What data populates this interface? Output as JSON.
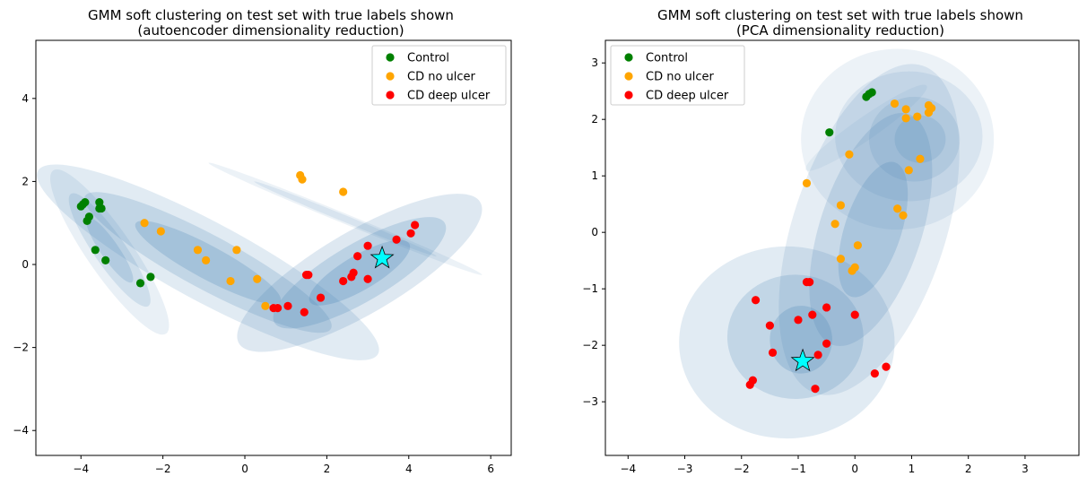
{
  "colors": {
    "control": "#008000",
    "cd_no_ulcer": "#FFA500",
    "cd_deep_ulcer": "#FF0000",
    "star": "#00FFFF",
    "ellipse": "#4682B4"
  },
  "chart_data": [
    {
      "type": "scatter",
      "title": "GMM soft clustering on test set with true labels shown",
      "subtitle": "(autoencoder dimensionality reduction)",
      "xlim": [
        -5.1,
        6.5
      ],
      "ylim": [
        -4.6,
        5.4
      ],
      "xticks": [
        -4,
        -2,
        0,
        2,
        4,
        6
      ],
      "yticks": [
        -4,
        -2,
        0,
        2,
        4
      ],
      "legend": {
        "position": "top-right",
        "entries": [
          "Control",
          "CD no ulcer",
          "CD deep ulcer"
        ]
      },
      "series": [
        {
          "name": "Control",
          "color_key": "control",
          "points": [
            [
              -3.95,
              1.45
            ],
            [
              -4.0,
              1.4
            ],
            [
              -3.9,
              1.5
            ],
            [
              -3.55,
              1.5
            ],
            [
              -3.5,
              1.35
            ],
            [
              -3.55,
              1.35
            ],
            [
              -3.8,
              1.15
            ],
            [
              -3.85,
              1.05
            ],
            [
              -3.65,
              0.35
            ],
            [
              -3.4,
              0.1
            ],
            [
              -2.55,
              -0.45
            ],
            [
              -2.3,
              -0.3
            ]
          ]
        },
        {
          "name": "CD no ulcer",
          "color_key": "cd_no_ulcer",
          "points": [
            [
              -2.45,
              1.0
            ],
            [
              -2.05,
              0.8
            ],
            [
              -1.15,
              0.35
            ],
            [
              -0.95,
              0.1
            ],
            [
              -0.2,
              0.35
            ],
            [
              -0.35,
              -0.4
            ],
            [
              0.3,
              -0.35
            ],
            [
              0.5,
              -1.0
            ],
            [
              1.35,
              2.15
            ],
            [
              1.4,
              2.05
            ],
            [
              2.4,
              1.75
            ]
          ]
        },
        {
          "name": "CD deep ulcer",
          "color_key": "cd_deep_ulcer",
          "points": [
            [
              0.7,
              -1.05
            ],
            [
              0.8,
              -1.05
            ],
            [
              1.05,
              -1.0
            ],
            [
              1.45,
              -1.15
            ],
            [
              1.5,
              -0.25
            ],
            [
              1.55,
              -0.25
            ],
            [
              1.85,
              -0.8
            ],
            [
              2.4,
              -0.4
            ],
            [
              2.6,
              -0.3
            ],
            [
              2.65,
              -0.2
            ],
            [
              2.75,
              0.2
            ],
            [
              3.0,
              0.45
            ],
            [
              3.0,
              -0.35
            ],
            [
              3.7,
              0.6
            ],
            [
              4.05,
              0.75
            ],
            [
              4.15,
              0.95
            ]
          ]
        }
      ],
      "star": [
        3.35,
        0.15
      ],
      "ellipses": [
        {
          "cx": -3.3,
          "cy": 0.3,
          "rx": 2.4,
          "ry": 0.55,
          "angle": -55,
          "opacity": 0.12
        },
        {
          "cx": -3.3,
          "cy": 0.35,
          "rx": 1.65,
          "ry": 0.38,
          "angle": -55,
          "opacity": 0.16
        },
        {
          "cx": -3.3,
          "cy": 0.35,
          "rx": 0.95,
          "ry": 0.22,
          "angle": -55,
          "opacity": 0.2
        },
        {
          "cx": -0.9,
          "cy": 0.05,
          "rx": 4.7,
          "ry": 0.95,
          "angle": -28,
          "opacity": 0.16
        },
        {
          "cx": -0.9,
          "cy": 0.05,
          "rx": 3.4,
          "ry": 0.65,
          "angle": -28,
          "opacity": 0.2
        },
        {
          "cx": -0.9,
          "cy": 0.05,
          "rx": 2.0,
          "ry": 0.4,
          "angle": -28,
          "opacity": 0.24
        },
        {
          "cx": 2.8,
          "cy": -0.2,
          "rx": 3.4,
          "ry": 1.0,
          "angle": 30,
          "opacity": 0.18
        },
        {
          "cx": 2.8,
          "cy": -0.2,
          "rx": 2.4,
          "ry": 0.7,
          "angle": 30,
          "opacity": 0.22
        },
        {
          "cx": 2.8,
          "cy": -0.2,
          "rx": 1.4,
          "ry": 0.42,
          "angle": 30,
          "opacity": 0.26
        },
        {
          "cx": 2.45,
          "cy": 1.1,
          "rx": 3.6,
          "ry": 0.12,
          "angle": -22,
          "opacity": 0.1
        },
        {
          "cx": 2.45,
          "cy": 1.1,
          "rx": 2.4,
          "ry": 0.08,
          "angle": -22,
          "opacity": 0.12
        }
      ]
    },
    {
      "type": "scatter",
      "title": "GMM soft clustering on test set with true labels shown",
      "subtitle": "(PCA dimensionality reduction)",
      "xlim": [
        -4.4,
        3.95
      ],
      "ylim": [
        -3.95,
        3.4
      ],
      "xticks": [
        -4,
        -3,
        -2,
        -1,
        0,
        1,
        2,
        3
      ],
      "yticks": [
        -3,
        -2,
        -1,
        0,
        1,
        2,
        3
      ],
      "legend": {
        "position": "top-left",
        "entries": [
          "Control",
          "CD no ulcer",
          "CD deep ulcer"
        ]
      },
      "series": [
        {
          "name": "Control",
          "color_key": "control",
          "points": [
            [
              0.2,
              2.4
            ],
            [
              0.25,
              2.45
            ],
            [
              0.3,
              2.48
            ],
            [
              -0.45,
              1.77
            ]
          ]
        },
        {
          "name": "CD no ulcer",
          "color_key": "cd_no_ulcer",
          "points": [
            [
              0.7,
              2.28
            ],
            [
              0.9,
              2.18
            ],
            [
              0.9,
              2.02
            ],
            [
              1.1,
              2.05
            ],
            [
              1.3,
              2.25
            ],
            [
              1.35,
              2.2
            ],
            [
              1.3,
              2.12
            ],
            [
              0.95,
              1.1
            ],
            [
              1.15,
              1.3
            ],
            [
              -0.1,
              1.38
            ],
            [
              -0.85,
              0.87
            ],
            [
              -0.25,
              0.48
            ],
            [
              -0.35,
              0.15
            ],
            [
              0.75,
              0.42
            ],
            [
              0.85,
              0.3
            ],
            [
              0.05,
              -0.23
            ],
            [
              -0.25,
              -0.47
            ],
            [
              0.0,
              -0.62
            ],
            [
              -0.05,
              -0.68
            ]
          ]
        },
        {
          "name": "CD deep ulcer",
          "color_key": "cd_deep_ulcer",
          "points": [
            [
              -0.85,
              -0.88
            ],
            [
              -0.8,
              -0.88
            ],
            [
              -1.75,
              -1.2
            ],
            [
              -0.5,
              -1.33
            ],
            [
              -0.75,
              -1.46
            ],
            [
              0.0,
              -1.46
            ],
            [
              -1.0,
              -1.55
            ],
            [
              -1.5,
              -1.65
            ],
            [
              -0.5,
              -1.97
            ],
            [
              -1.45,
              -2.13
            ],
            [
              -0.65,
              -2.17
            ],
            [
              0.55,
              -2.38
            ],
            [
              0.35,
              -2.5
            ],
            [
              -1.8,
              -2.62
            ],
            [
              -1.85,
              -2.7
            ],
            [
              -0.7,
              -2.77
            ]
          ]
        }
      ],
      "star": [
        -0.92,
        -2.28
      ],
      "ellipses": [
        {
          "cx": -1.2,
          "cy": -1.95,
          "rx": 1.9,
          "ry": 1.7,
          "angle": 0,
          "opacity": 0.16
        },
        {
          "cx": -1.05,
          "cy": -1.85,
          "rx": 1.2,
          "ry": 1.1,
          "angle": 0,
          "opacity": 0.2
        },
        {
          "cx": -0.95,
          "cy": -1.9,
          "rx": 0.55,
          "ry": 0.6,
          "angle": 0,
          "opacity": 0.24
        },
        {
          "cx": 0.25,
          "cy": 0.05,
          "rx": 3.05,
          "ry": 1.35,
          "angle": 72,
          "opacity": 0.14
        },
        {
          "cx": 0.28,
          "cy": 0.05,
          "rx": 2.15,
          "ry": 0.9,
          "angle": 72,
          "opacity": 0.18
        },
        {
          "cx": 0.32,
          "cy": 0.05,
          "rx": 1.25,
          "ry": 0.5,
          "angle": 72,
          "opacity": 0.22
        },
        {
          "cx": 0.75,
          "cy": 1.65,
          "rx": 1.7,
          "ry": 1.6,
          "angle": 0,
          "opacity": 0.1
        },
        {
          "cx": 0.95,
          "cy": 1.7,
          "rx": 1.3,
          "ry": 1.15,
          "angle": 0,
          "opacity": 0.12
        },
        {
          "cx": 1.05,
          "cy": 1.65,
          "rx": 0.8,
          "ry": 0.75,
          "angle": 0,
          "opacity": 0.14
        },
        {
          "cx": 1.15,
          "cy": 1.65,
          "rx": 0.45,
          "ry": 0.42,
          "angle": 0,
          "opacity": 0.16
        },
        {
          "cx": 0.2,
          "cy": 1.85,
          "rx": 1.3,
          "ry": 0.2,
          "angle": 35,
          "opacity": 0.08
        }
      ]
    }
  ]
}
